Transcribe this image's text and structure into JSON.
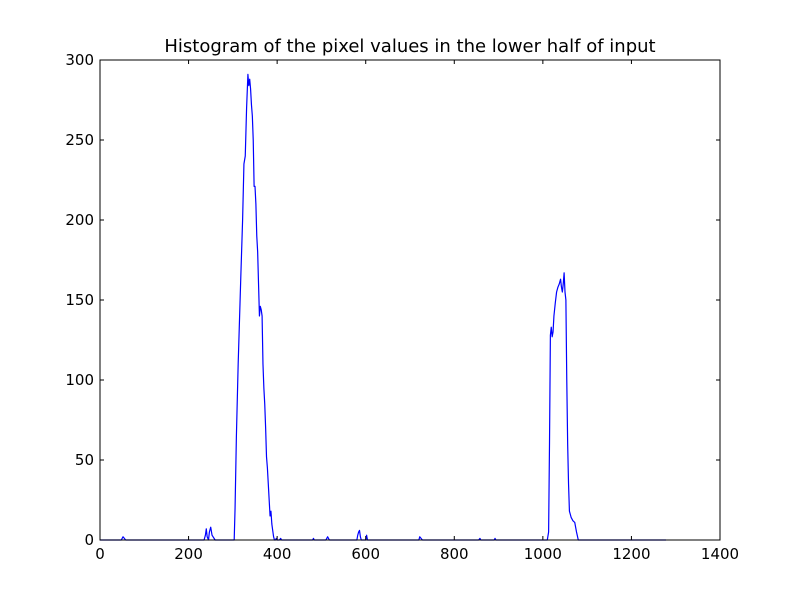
{
  "chart_data": {
    "type": "line",
    "title": "Histogram of the pixel values in the lower half of input",
    "xlabel": "",
    "ylabel": "",
    "xlim": [
      0,
      1400
    ],
    "ylim": [
      0,
      300
    ],
    "xticks": [
      0,
      200,
      400,
      600,
      800,
      1000,
      1200,
      1400
    ],
    "yticks": [
      0,
      50,
      100,
      150,
      200,
      250,
      300
    ],
    "grid": false,
    "legend": "none",
    "line_color": "#0000ff",
    "series": [
      {
        "x": [
          0,
          48,
          52,
          55,
          58,
          200,
          235,
          238,
          240,
          242,
          245,
          247,
          250,
          253,
          260,
          303,
          305,
          308,
          312,
          318,
          322,
          325,
          328,
          331,
          334,
          336,
          338,
          340,
          342,
          344,
          346,
          348,
          350,
          352,
          354,
          356,
          358,
          360,
          362,
          364,
          366,
          368,
          370,
          372,
          374,
          376,
          378,
          380,
          382,
          384,
          386,
          388,
          390,
          392,
          394,
          396,
          398,
          400,
          405,
          408,
          410,
          413,
          480,
          482,
          484,
          510,
          512,
          514,
          516,
          518,
          580,
          582,
          584,
          586,
          588,
          590,
          600,
          602,
          604,
          720,
          722,
          725,
          728,
          855,
          858,
          860,
          890,
          892,
          894,
          1010,
          1013,
          1015,
          1017,
          1019,
          1021,
          1023,
          1025,
          1028,
          1031,
          1034,
          1037,
          1040,
          1042,
          1044,
          1046,
          1048,
          1050,
          1052,
          1054,
          1056,
          1058,
          1060,
          1062,
          1064,
          1068,
          1072,
          1076,
          1080,
          1083,
          1086,
          1090,
          1278
        ],
        "y": [
          0,
          0,
          2,
          1,
          0,
          0,
          0,
          3,
          7,
          2,
          0,
          5,
          8,
          3,
          0,
          0,
          20,
          65,
          110,
          165,
          200,
          235,
          240,
          270,
          291,
          284,
          288,
          282,
          272,
          265,
          250,
          221,
          221,
          210,
          190,
          180,
          160,
          140,
          146,
          144,
          140,
          110,
          95,
          85,
          70,
          52,
          45,
          35,
          25,
          15,
          18,
          10,
          6,
          2,
          0,
          0,
          1,
          0,
          0,
          1,
          0,
          0,
          0,
          1,
          0,
          0,
          1,
          2,
          1,
          0,
          0,
          3,
          5,
          6,
          2,
          0,
          0,
          3,
          0,
          0,
          2,
          1,
          0,
          0,
          1,
          0,
          0,
          1,
          0,
          0,
          5,
          60,
          128,
          133,
          127,
          130,
          140,
          148,
          155,
          158,
          160,
          163,
          158,
          155,
          160,
          167,
          155,
          150,
          100,
          60,
          35,
          18,
          16,
          14,
          12,
          11,
          5,
          0,
          0,
          0,
          0,
          0
        ]
      }
    ]
  }
}
